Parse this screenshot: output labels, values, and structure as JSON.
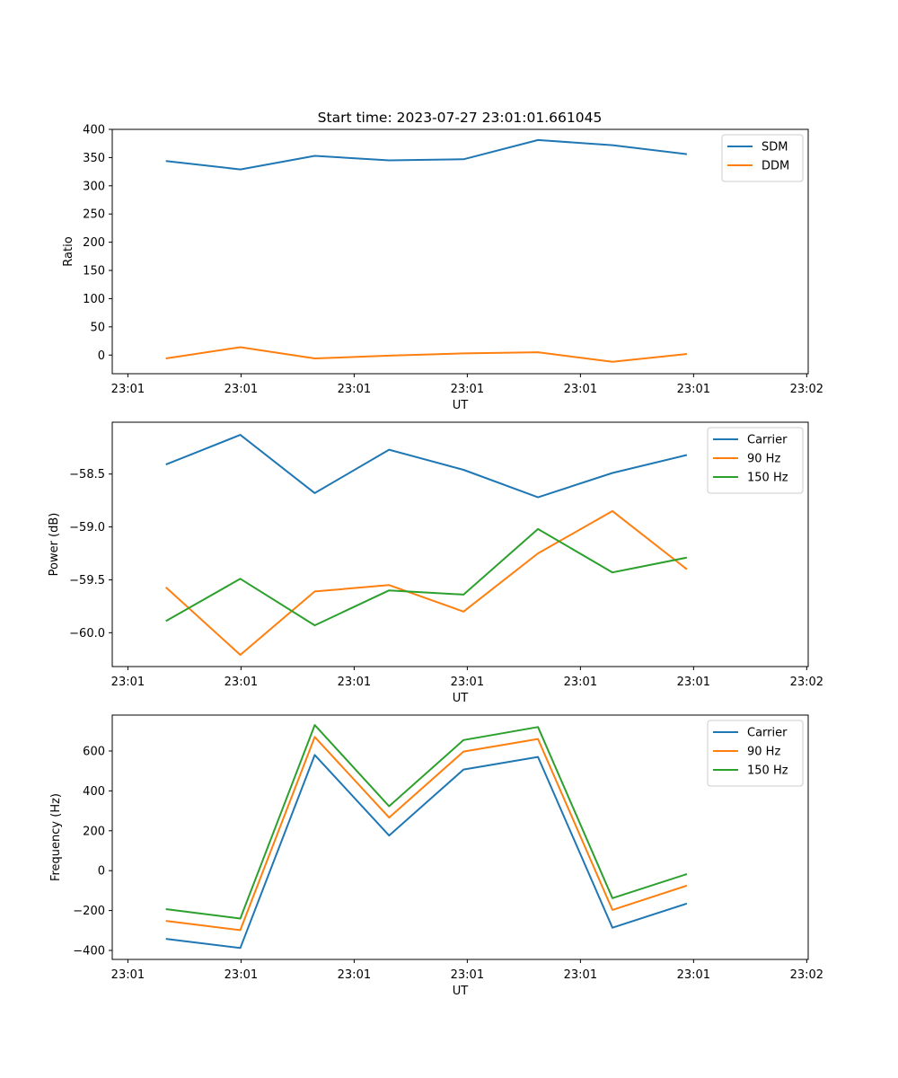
{
  "title": "Start time: 2023-07-27 23:01:01.661045",
  "colors": {
    "blue": "#1f77b4",
    "orange": "#ff7f0e",
    "green": "#2ca02c"
  },
  "chart_data": [
    {
      "type": "line",
      "xlabel": "UT",
      "ylabel": "Ratio",
      "x": [
        1,
        2,
        3,
        4,
        5,
        6,
        7,
        8
      ],
      "xlim": [
        0.28,
        9.63
      ],
      "x_ticks": [
        0.49,
        2.01,
        3.53,
        5.05,
        6.57,
        8.09,
        9.61
      ],
      "x_tick_labels": [
        "23:01",
        "23:01",
        "23:01",
        "23:01",
        "23:01",
        "23:01",
        "23:02"
      ],
      "ylim": [
        -33,
        400
      ],
      "y_ticks": [
        0,
        50,
        100,
        150,
        200,
        250,
        300,
        350,
        400
      ],
      "y_tick_labels": [
        "0",
        "50",
        "100",
        "150",
        "200",
        "250",
        "300",
        "350",
        "400"
      ],
      "legend": "top-right",
      "series": [
        {
          "name": "SDM",
          "color": "#1f77b4",
          "values": [
            344,
            329,
            353,
            345,
            347,
            381,
            372,
            356
          ]
        },
        {
          "name": "DDM",
          "color": "#ff7f0e",
          "values": [
            -6,
            14,
            -6,
            -1,
            3,
            5,
            -12,
            2
          ]
        }
      ]
    },
    {
      "type": "line",
      "xlabel": "UT",
      "ylabel": "Power (dB)",
      "x": [
        1,
        2,
        3,
        4,
        5,
        6,
        7,
        8
      ],
      "xlim": [
        0.28,
        9.63
      ],
      "x_ticks": [
        0.49,
        2.01,
        3.53,
        5.05,
        6.57,
        8.09,
        9.61
      ],
      "x_tick_labels": [
        "23:01",
        "23:01",
        "23:01",
        "23:01",
        "23:01",
        "23:01",
        "23:02"
      ],
      "ylim": [
        -60.32,
        -58.01
      ],
      "y_ticks": [
        -60.0,
        -59.5,
        -59.0,
        -58.5
      ],
      "y_tick_labels": [
        "−60.0",
        "−59.5",
        "−59.0",
        "−58.5"
      ],
      "legend": "top-right",
      "series": [
        {
          "name": "Carrier",
          "color": "#1f77b4",
          "values": [
            -58.41,
            -58.13,
            -58.68,
            -58.27,
            -58.46,
            -58.72,
            -58.49,
            -58.32
          ]
        },
        {
          "name": "90 Hz",
          "color": "#ff7f0e",
          "values": [
            -59.57,
            -60.21,
            -59.61,
            -59.55,
            -59.8,
            -59.25,
            -58.85,
            -59.4
          ]
        },
        {
          "name": "150 Hz",
          "color": "#2ca02c",
          "values": [
            -59.89,
            -59.49,
            -59.93,
            -59.6,
            -59.64,
            -59.02,
            -59.43,
            -59.29
          ]
        }
      ]
    },
    {
      "type": "line",
      "xlabel": "UT",
      "ylabel": "Frequency (Hz)",
      "x": [
        1,
        2,
        3,
        4,
        5,
        6,
        7,
        8
      ],
      "xlim": [
        0.28,
        9.63
      ],
      "x_ticks": [
        0.49,
        2.01,
        3.53,
        5.05,
        6.57,
        8.09,
        9.61
      ],
      "x_tick_labels": [
        "23:01",
        "23:01",
        "23:01",
        "23:01",
        "23:01",
        "23:01",
        "23:02"
      ],
      "ylim": [
        -445,
        780
      ],
      "y_ticks": [
        -400,
        -200,
        0,
        200,
        400,
        600
      ],
      "y_tick_labels": [
        "−400",
        "−200",
        "0",
        "200",
        "400",
        "600"
      ],
      "legend": "top-right",
      "series": [
        {
          "name": "Carrier",
          "color": "#1f77b4",
          "values": [
            -342,
            -388,
            580,
            176,
            507,
            570,
            -286,
            -165
          ]
        },
        {
          "name": "90 Hz",
          "color": "#ff7f0e",
          "values": [
            -252,
            -298,
            670,
            266,
            597,
            660,
            -197,
            -75
          ]
        },
        {
          "name": "150 Hz",
          "color": "#2ca02c",
          "values": [
            -193,
            -240,
            730,
            323,
            655,
            720,
            -138,
            -17
          ]
        }
      ]
    }
  ]
}
